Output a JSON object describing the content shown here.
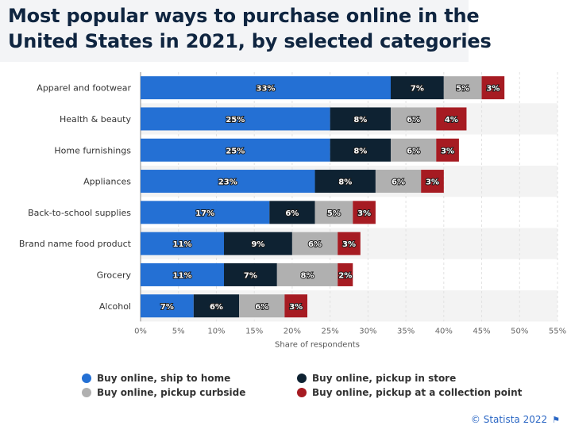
{
  "title": {
    "line1": "Most popular ways to purchase online in the",
    "line2": "United States in 2021, by selected categories"
  },
  "credit": "© Statista 2022",
  "colors": {
    "ship_home": "#2470d4",
    "pickup_store": "#0e2232",
    "curbside": "#b0b0b0",
    "collection_point": "#a61b22"
  },
  "legend": [
    {
      "label": "Buy online, ship to home",
      "color": "#2470d4"
    },
    {
      "label": "Buy online, pickup in store",
      "color": "#0e2232"
    },
    {
      "label": "Buy online, pickup curbside",
      "color": "#b0b0b0"
    },
    {
      "label": "Buy online, pickup at a collection point",
      "color": "#a61b22"
    }
  ],
  "chart_data": {
    "type": "bar",
    "orientation": "horizontal",
    "stacked": true,
    "xlabel": "Share of respondents",
    "xlim": [
      0,
      55
    ],
    "xticks": [
      "0%",
      "5%",
      "10%",
      "15%",
      "20%",
      "25%",
      "30%",
      "35%",
      "40%",
      "45%",
      "50%",
      "55%"
    ],
    "categories": [
      "Apparel and footwear",
      "Health & beauty",
      "Home furnishings",
      "Appliances",
      "Back-to-school supplies",
      "Brand name food product",
      "Grocery",
      "Alcohol"
    ],
    "series": [
      {
        "name": "Buy online, ship to home",
        "color": "#2470d4",
        "values": [
          33,
          25,
          25,
          23,
          17,
          11,
          11,
          7
        ]
      },
      {
        "name": "Buy online, pickup in store",
        "color": "#0e2232",
        "values": [
          7,
          8,
          8,
          8,
          6,
          9,
          7,
          6
        ]
      },
      {
        "name": "Buy online, pickup curbside",
        "color": "#b0b0b0",
        "values": [
          5,
          6,
          6,
          6,
          5,
          6,
          8,
          6
        ]
      },
      {
        "name": "Buy online, pickup at a collection point",
        "color": "#a61b22",
        "values": [
          3,
          4,
          3,
          3,
          3,
          3,
          2,
          3
        ]
      }
    ],
    "value_suffix": "%",
    "grid": "vertical",
    "legend_position": "bottom"
  }
}
